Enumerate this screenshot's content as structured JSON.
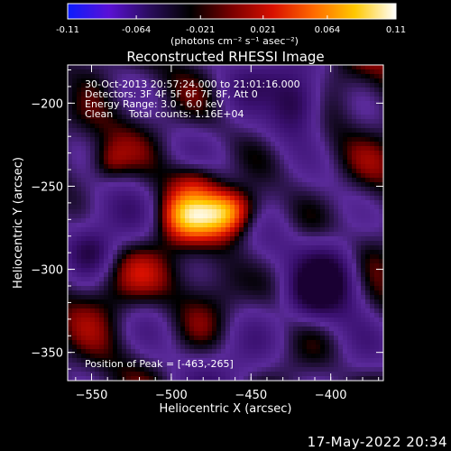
{
  "colorbar": {
    "ticks": [
      "-0.11",
      "-0.064",
      "-0.021",
      "0.021",
      "0.064",
      "0.11"
    ],
    "tick_values": [
      -0.11,
      -0.064,
      -0.021,
      0.021,
      0.064,
      0.11
    ],
    "range": [
      -0.11,
      0.11
    ],
    "units_label": "(photons cm⁻² s⁻¹ asec⁻²)",
    "colors": [
      "#0b1cff",
      "#5a10d6",
      "#2a0d5c",
      "#000000",
      "#7a0000",
      "#d81000",
      "#ff6a00",
      "#ffc800",
      "#ffffff"
    ]
  },
  "info_lines": [
    "30-Oct-2013 20:57:24.000 to 21:01:16.000",
    "Detectors: 3F 4F 5F 6F 7F 8F, Att 0",
    "Energy Range: 3.0 - 6.0 keV",
    "Clean     Total counts: 1.16E+04"
  ],
  "peak_text": "Position of Peak = [-463,-265]",
  "footer_date": "17-May-2022 20:34",
  "chart_data": {
    "type": "heatmap",
    "title": "Reconstructed RHESSI Image",
    "xlabel": "Heliocentric X (arcsec)",
    "ylabel": "Heliocentric Y (arcsec)",
    "xlim": [
      -565,
      -367
    ],
    "ylim": [
      -367,
      -177
    ],
    "xticks": [
      -550,
      -500,
      -450,
      -400
    ],
    "yticks": [
      -350,
      -300,
      -250,
      -200
    ],
    "peak": {
      "x": -463,
      "y": -265
    },
    "colormap": [
      "#1a0033",
      "#3a1070",
      "#5a2a9a",
      "#000000",
      "#7a0000",
      "#d81000",
      "#ff6a00",
      "#ffc800",
      "#ffffff"
    ],
    "grid": false
  }
}
